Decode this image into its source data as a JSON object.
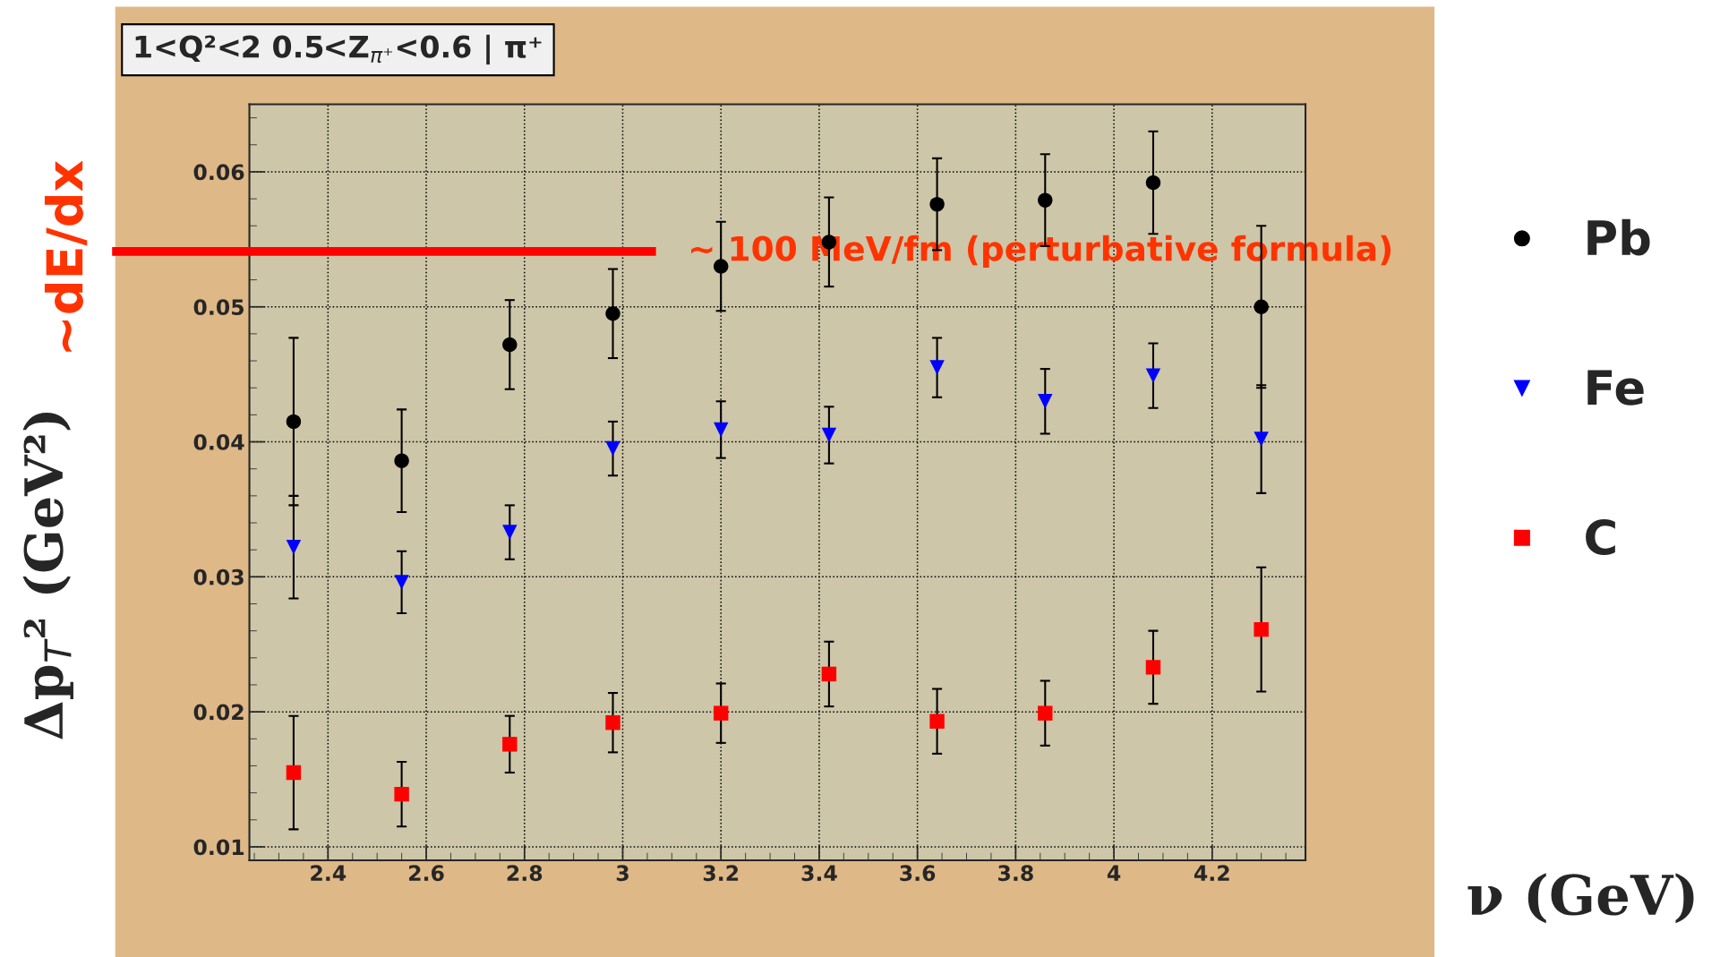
{
  "chart_data": {
    "type": "scatter",
    "title": "1<Q²<2 0.5<Z$_{π⁺}$<0.6 | π⁺",
    "xlabel": "ν (GeV)",
    "ylabel": "Δp$_{T}$² (GeV²)",
    "x": [
      2.33,
      2.55,
      2.77,
      2.98,
      3.2,
      3.42,
      3.64,
      3.86,
      4.08,
      4.3
    ],
    "series": [
      {
        "name": "Pb",
        "color": "#000000",
        "marker": "circle",
        "values": [
          0.0415,
          0.0386,
          0.0472,
          0.0495,
          0.053,
          0.0548,
          0.0576,
          0.0579,
          0.0592,
          0.05
        ],
        "errors": [
          0.0062,
          0.0038,
          0.0033,
          0.0033,
          0.0033,
          0.0033,
          0.0034,
          0.0034,
          0.0038,
          0.006
        ]
      },
      {
        "name": "Fe",
        "color": "#0000ff",
        "marker": "triangle",
        "values": [
          0.0322,
          0.0296,
          0.0333,
          0.0395,
          0.0409,
          0.0405,
          0.0455,
          0.043,
          0.0449,
          0.0402
        ],
        "errors": [
          0.0038,
          0.0023,
          0.002,
          0.002,
          0.0021,
          0.0021,
          0.0022,
          0.0024,
          0.0024,
          0.004
        ]
      },
      {
        "name": "C",
        "color": "#ff0000",
        "marker": "square",
        "values": [
          0.0155,
          0.0139,
          0.0176,
          0.0192,
          0.0199,
          0.0228,
          0.0193,
          0.0199,
          0.0233,
          0.0261
        ],
        "errors": [
          0.0042,
          0.0024,
          0.0021,
          0.0022,
          0.0022,
          0.0024,
          0.0024,
          0.0024,
          0.0027,
          0.0046
        ]
      }
    ],
    "xlim": [
      2.24,
      4.39
    ],
    "ylim": [
      0.009,
      0.065
    ],
    "xticks": [
      2.4,
      2.6,
      2.8,
      3,
      3.2,
      3.4,
      3.6,
      3.8,
      4,
      4.2
    ],
    "yticks": [
      0.01,
      0.02,
      0.03,
      0.04,
      0.05,
      0.06
    ],
    "grid": true,
    "legend": "right",
    "ref_lines": [
      {
        "axis": "y",
        "value": 0.0541,
        "label": "~ 100 MeV/fm (perturbative formula)",
        "color": "#ff0000"
      }
    ],
    "annotations": [
      "~dE/dx"
    ]
  }
}
